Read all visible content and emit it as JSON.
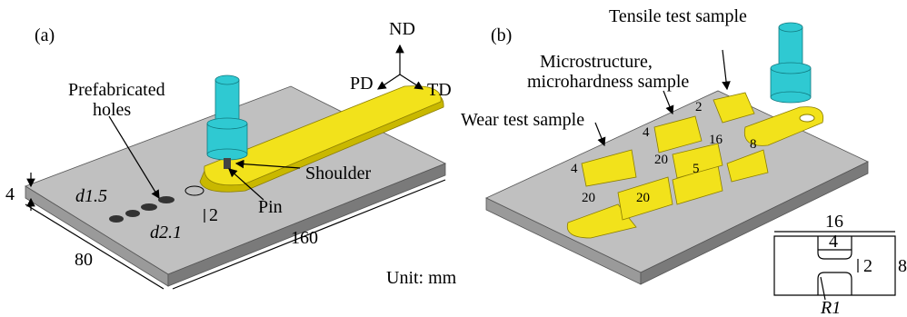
{
  "panel_a": {
    "label": "(a)",
    "axes": {
      "nd": "ND",
      "pd": "PD",
      "td": "TD"
    },
    "holes_label": [
      "Prefabricated",
      "holes"
    ],
    "shoulder": "Shoulder",
    "pin": "Pin",
    "hole_small": "d1.5",
    "hole_large": "d2.1",
    "thickness": "4",
    "depth": "2",
    "width": "80",
    "length": "160"
  },
  "unit": "Unit: mm",
  "panel_b": {
    "label": "(b)",
    "tensile": "Tensile test sample",
    "micro": [
      "Microstructure,",
      "microhardness sample"
    ],
    "wear": "Wear test sample",
    "dims": [
      "2",
      "4",
      "16",
      "8",
      "20",
      "5",
      "4",
      "20",
      "20"
    ],
    "inset": {
      "length": "16",
      "gauge": "4",
      "width": "2",
      "height": "8",
      "radius": "R1"
    }
  }
}
